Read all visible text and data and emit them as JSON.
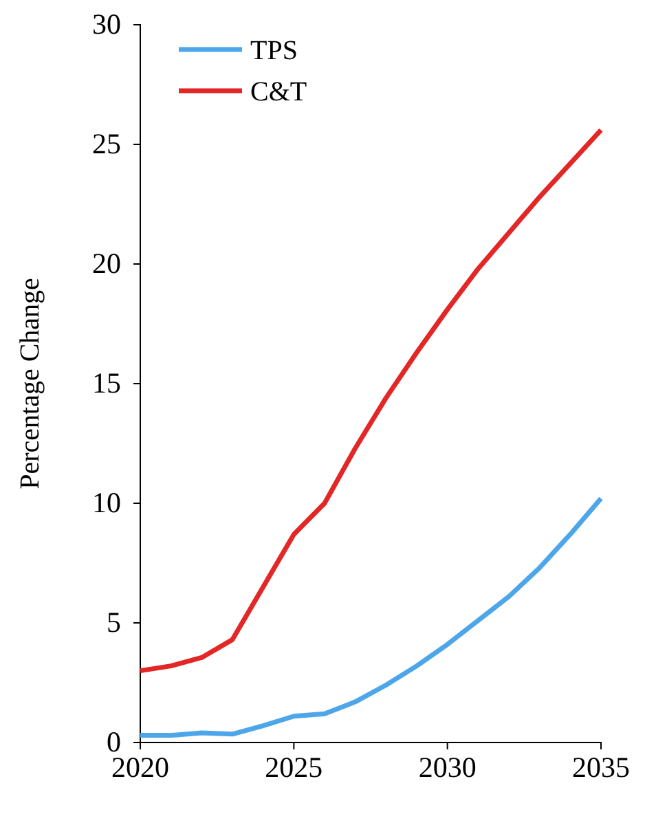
{
  "chart_data": {
    "type": "line",
    "ylabel": "Percentage Change",
    "x": [
      2020,
      2021,
      2022,
      2023,
      2024,
      2025,
      2026,
      2027,
      2028,
      2029,
      2030,
      2031,
      2032,
      2033,
      2034,
      2035
    ],
    "xlim": [
      2020,
      2035
    ],
    "xticks": [
      2020,
      2025,
      2030,
      2035
    ],
    "ylim": [
      0,
      30
    ],
    "yticks": [
      0,
      5,
      10,
      15,
      20,
      25,
      30
    ],
    "legend": "top left",
    "line_style": "solid",
    "series": [
      {
        "name": "TPS",
        "color": "#4da6ea",
        "values": [
          0.3,
          0.3,
          0.4,
          0.35,
          0.7,
          1.1,
          1.2,
          1.7,
          2.4,
          3.2,
          4.1,
          5.1,
          6.1,
          7.3,
          8.7,
          10.2
        ]
      },
      {
        "name": "C&T",
        "color": "#e32626",
        "values": [
          3.0,
          3.2,
          3.55,
          4.3,
          6.5,
          8.7,
          10.0,
          12.3,
          14.4,
          16.3,
          18.1,
          19.8,
          21.3,
          22.8,
          24.2,
          25.6
        ]
      }
    ]
  }
}
